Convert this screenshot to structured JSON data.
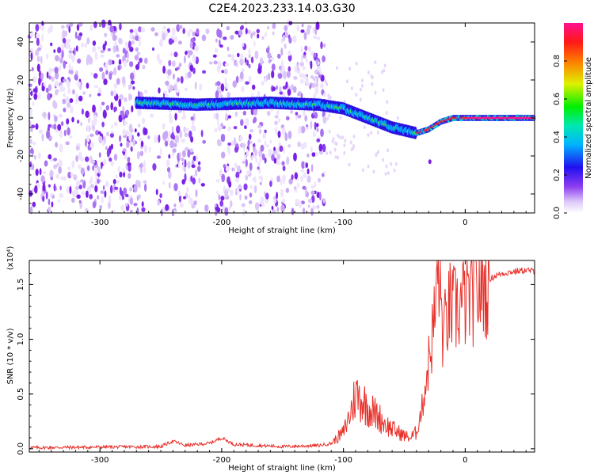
{
  "title": "C2E4.2023.233.14.03.G30",
  "chart_data": [
    {
      "type": "heatmap",
      "xlabel": "Height of straight line (km)",
      "ylabel": "Frequency (Hz)",
      "xlim": [
        -358,
        57
      ],
      "ylim": [
        -50,
        50
      ],
      "xticks": [
        -300,
        -200,
        -100,
        0
      ],
      "yticks": [
        -40,
        -20,
        0,
        20,
        40
      ],
      "xtick_labels": [
        "-300",
        "-200",
        "-100",
        "0"
      ],
      "ytick_labels": [
        "-40",
        "-20",
        "0",
        "20",
        "40"
      ],
      "colorbar": {
        "label": "Normalized spectral amplitude",
        "range": [
          0,
          1
        ],
        "ticks": [
          0.0,
          0.2,
          0.4,
          0.6,
          0.8
        ],
        "tick_labels": [
          "0.0",
          "0.2",
          "0.4",
          "0.6",
          "0.8"
        ],
        "colormap": "rainbow (white-purple-blue-cyan-green-yellow-red-magenta)"
      },
      "noise_region": {
        "x": [
          -358,
          -115
        ],
        "amplitude": "low (white/purple)"
      },
      "signal_trace": {
        "x": [
          -270,
          -220,
          -160,
          -120,
          -100,
          -80,
          -60,
          -40,
          -30,
          -20,
          -10,
          0,
          20,
          57
        ],
        "frequency_hz": [
          8,
          7,
          8,
          7,
          5,
          0,
          -5,
          -8,
          -6,
          -2,
          0,
          0,
          0,
          0
        ]
      },
      "grid": false
    },
    {
      "type": "line",
      "xlabel": "Height of straight line (km)",
      "ylabel": "SNR (10 * v/v)",
      "y_multiplier_label": "(x10⁴)",
      "xlim": [
        -358,
        57
      ],
      "ylim": [
        -0.03,
        1.72
      ],
      "xticks": [
        -300,
        -200,
        -100,
        0
      ],
      "yticks": [
        0.0,
        0.5,
        1.0,
        1.5
      ],
      "xtick_labels": [
        "-300",
        "-200",
        "-100",
        "0"
      ],
      "ytick_labels": [
        "0.0",
        "0.5",
        "1.0",
        "1.5"
      ],
      "series": [
        {
          "color": "#e8302a",
          "x": [
            -358,
            -300,
            -250,
            -240,
            -230,
            -210,
            -200,
            -190,
            -150,
            -120,
            -110,
            -100,
            -95,
            -90,
            -85,
            -80,
            -75,
            -70,
            -65,
            -60,
            -55,
            -50,
            -45,
            -40,
            -35,
            -30,
            -25,
            -22,
            -18,
            -15,
            -12,
            -10,
            -5,
            0,
            5,
            10,
            15,
            20,
            25,
            30,
            40,
            50,
            57
          ],
          "y": [
            0.01,
            0.015,
            0.02,
            0.07,
            0.03,
            0.05,
            0.1,
            0.04,
            0.02,
            0.03,
            0.05,
            0.15,
            0.3,
            0.5,
            0.45,
            0.38,
            0.33,
            0.28,
            0.22,
            0.18,
            0.15,
            0.12,
            0.1,
            0.15,
            0.4,
            0.8,
            1.2,
            1.7,
            1.0,
            1.2,
            1.3,
            1.25,
            1.3,
            1.35,
            1.4,
            1.45,
            1.5,
            1.55,
            1.58,
            1.6,
            1.62,
            1.63,
            1.62
          ]
        }
      ],
      "grid": false
    }
  ]
}
